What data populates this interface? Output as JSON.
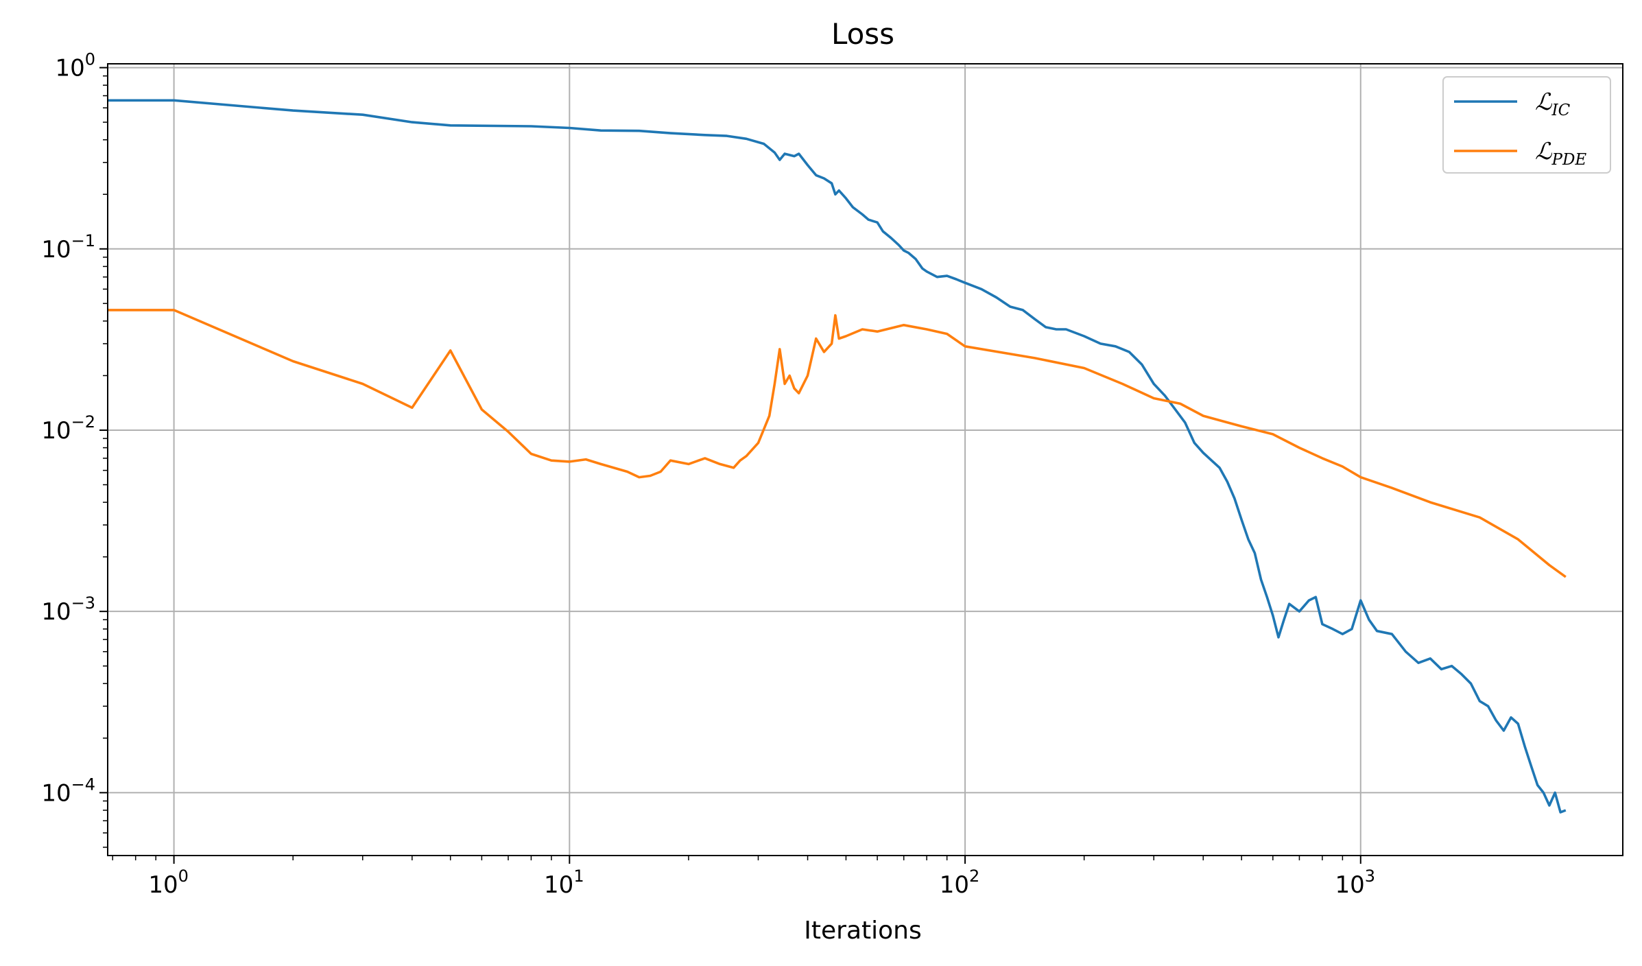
{
  "chart_data": {
    "type": "line",
    "title": "Loss",
    "xlabel": "Iterations",
    "ylabel": "",
    "xscale": "log",
    "yscale": "log",
    "xlim": [
      0.68,
      4600
    ],
    "ylim": [
      4.5e-05,
      1.05
    ],
    "grid": true,
    "legend_position": "upper-right",
    "x_ticks": [
      {
        "value": 1,
        "base": "10",
        "exp": "0"
      },
      {
        "value": 10,
        "base": "10",
        "exp": "1"
      },
      {
        "value": 100,
        "base": "10",
        "exp": "2"
      },
      {
        "value": 1000,
        "base": "10",
        "exp": "3"
      }
    ],
    "y_ticks": [
      {
        "value": 1,
        "base": "10",
        "exp": "0"
      },
      {
        "value": 0.1,
        "base": "10",
        "exp": "−1"
      },
      {
        "value": 0.01,
        "base": "10",
        "exp": "−2"
      },
      {
        "value": 0.001,
        "base": "10",
        "exp": "−3"
      },
      {
        "value": 0.0001,
        "base": "10",
        "exp": "−4"
      }
    ],
    "series": [
      {
        "name": "ℒ",
        "name_subscript": "IC",
        "color": "#1f77b4",
        "points": [
          [
            0.68,
            0.66
          ],
          [
            1,
            0.66
          ],
          [
            2,
            0.58
          ],
          [
            3,
            0.55
          ],
          [
            4,
            0.5
          ],
          [
            5,
            0.48
          ],
          [
            8,
            0.475
          ],
          [
            10,
            0.465
          ],
          [
            12,
            0.45
          ],
          [
            15,
            0.448
          ],
          [
            18,
            0.435
          ],
          [
            22,
            0.425
          ],
          [
            25,
            0.42
          ],
          [
            28,
            0.405
          ],
          [
            31,
            0.38
          ],
          [
            33,
            0.34
          ],
          [
            34,
            0.31
          ],
          [
            35,
            0.335
          ],
          [
            37,
            0.325
          ],
          [
            38,
            0.335
          ],
          [
            40,
            0.29
          ],
          [
            42,
            0.255
          ],
          [
            44,
            0.245
          ],
          [
            46,
            0.23
          ],
          [
            47,
            0.2
          ],
          [
            48,
            0.21
          ],
          [
            50,
            0.19
          ],
          [
            52,
            0.17
          ],
          [
            55,
            0.155
          ],
          [
            57,
            0.145
          ],
          [
            60,
            0.14
          ],
          [
            62,
            0.125
          ],
          [
            65,
            0.115
          ],
          [
            68,
            0.105
          ],
          [
            70,
            0.098
          ],
          [
            72,
            0.095
          ],
          [
            75,
            0.088
          ],
          [
            78,
            0.078
          ],
          [
            80,
            0.075
          ],
          [
            85,
            0.07
          ],
          [
            90,
            0.071
          ],
          [
            95,
            0.068
          ],
          [
            100,
            0.065
          ],
          [
            110,
            0.06
          ],
          [
            120,
            0.054
          ],
          [
            130,
            0.048
          ],
          [
            140,
            0.046
          ],
          [
            150,
            0.041
          ],
          [
            160,
            0.037
          ],
          [
            170,
            0.036
          ],
          [
            180,
            0.036
          ],
          [
            200,
            0.033
          ],
          [
            220,
            0.03
          ],
          [
            240,
            0.029
          ],
          [
            260,
            0.027
          ],
          [
            280,
            0.023
          ],
          [
            300,
            0.018
          ],
          [
            320,
            0.0155
          ],
          [
            340,
            0.013
          ],
          [
            360,
            0.011
          ],
          [
            380,
            0.0085
          ],
          [
            400,
            0.0075
          ],
          [
            420,
            0.0068
          ],
          [
            440,
            0.0062
          ],
          [
            460,
            0.0052
          ],
          [
            480,
            0.0042
          ],
          [
            500,
            0.0032
          ],
          [
            520,
            0.0025
          ],
          [
            540,
            0.0021
          ],
          [
            560,
            0.0015
          ],
          [
            580,
            0.0012
          ],
          [
            600,
            0.00095
          ],
          [
            620,
            0.00072
          ],
          [
            640,
            0.0009
          ],
          [
            660,
            0.0011
          ],
          [
            700,
            0.001
          ],
          [
            740,
            0.00115
          ],
          [
            770,
            0.0012
          ],
          [
            800,
            0.00085
          ],
          [
            850,
            0.0008
          ],
          [
            900,
            0.00075
          ],
          [
            950,
            0.0008
          ],
          [
            1000,
            0.00115
          ],
          [
            1050,
            0.0009
          ],
          [
            1100,
            0.00078
          ],
          [
            1200,
            0.00075
          ],
          [
            1300,
            0.0006
          ],
          [
            1400,
            0.00052
          ],
          [
            1500,
            0.00055
          ],
          [
            1600,
            0.00048
          ],
          [
            1700,
            0.0005
          ],
          [
            1800,
            0.00045
          ],
          [
            1900,
            0.0004
          ],
          [
            2000,
            0.00032
          ],
          [
            2100,
            0.0003
          ],
          [
            2200,
            0.00025
          ],
          [
            2300,
            0.00022
          ],
          [
            2400,
            0.00026
          ],
          [
            2500,
            0.00024
          ],
          [
            2600,
            0.00018
          ],
          [
            2700,
            0.00014
          ],
          [
            2800,
            0.00011
          ],
          [
            2900,
            0.0001
          ],
          [
            3000,
            8.5e-05
          ],
          [
            3100,
            0.0001
          ],
          [
            3200,
            7.8e-05
          ],
          [
            3300,
            8e-05
          ]
        ]
      },
      {
        "name": "ℒ",
        "name_subscript": "PDE",
        "color": "#ff7f0e",
        "points": [
          [
            0.68,
            0.046
          ],
          [
            1,
            0.046
          ],
          [
            2,
            0.024
          ],
          [
            3,
            0.018
          ],
          [
            4,
            0.0133
          ],
          [
            5,
            0.0275
          ],
          [
            6,
            0.013
          ],
          [
            7,
            0.0098
          ],
          [
            8,
            0.0074
          ],
          [
            9,
            0.0068
          ],
          [
            10,
            0.0067
          ],
          [
            11,
            0.0069
          ],
          [
            12,
            0.0065
          ],
          [
            14,
            0.0059
          ],
          [
            15,
            0.0055
          ],
          [
            16,
            0.0056
          ],
          [
            17,
            0.0059
          ],
          [
            18,
            0.0068
          ],
          [
            20,
            0.0065
          ],
          [
            22,
            0.007
          ],
          [
            24,
            0.0065
          ],
          [
            26,
            0.0062
          ],
          [
            27,
            0.0068
          ],
          [
            28,
            0.0072
          ],
          [
            30,
            0.0085
          ],
          [
            32,
            0.012
          ],
          [
            33,
            0.018
          ],
          [
            34,
            0.028
          ],
          [
            35,
            0.018
          ],
          [
            36,
            0.02
          ],
          [
            37,
            0.017
          ],
          [
            38,
            0.016
          ],
          [
            40,
            0.02
          ],
          [
            42,
            0.032
          ],
          [
            44,
            0.027
          ],
          [
            46,
            0.03
          ],
          [
            47,
            0.043
          ],
          [
            48,
            0.032
          ],
          [
            50,
            0.033
          ],
          [
            55,
            0.036
          ],
          [
            60,
            0.035
          ],
          [
            70,
            0.038
          ],
          [
            80,
            0.036
          ],
          [
            90,
            0.034
          ],
          [
            100,
            0.029
          ],
          [
            150,
            0.025
          ],
          [
            200,
            0.022
          ],
          [
            250,
            0.018
          ],
          [
            300,
            0.015
          ],
          [
            350,
            0.014
          ],
          [
            400,
            0.012
          ],
          [
            500,
            0.0105
          ],
          [
            600,
            0.0095
          ],
          [
            700,
            0.008
          ],
          [
            800,
            0.007
          ],
          [
            900,
            0.0063
          ],
          [
            1000,
            0.0055
          ],
          [
            1200,
            0.0048
          ],
          [
            1500,
            0.004
          ],
          [
            2000,
            0.0033
          ],
          [
            2500,
            0.0025
          ],
          [
            3000,
            0.0018
          ],
          [
            3300,
            0.00155
          ]
        ]
      }
    ]
  }
}
